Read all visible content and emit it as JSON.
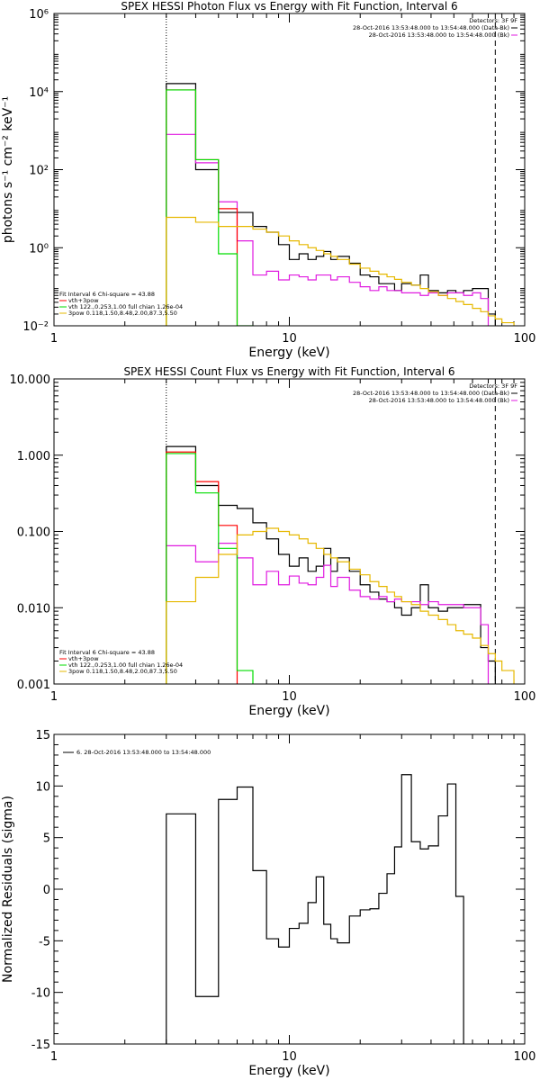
{
  "chart_data": [
    {
      "type": "line",
      "title": "SPEX HESSI Photon Flux vs Energy with Fit Function, Interval 6",
      "xlabel": "Energy (keV)",
      "ylabel": "photons s⁻¹ cm⁻² keV⁻¹",
      "xscale": "log",
      "yscale": "log",
      "xlim": [
        1,
        100
      ],
      "ylim": [
        0.01,
        1000000
      ],
      "xticks": [
        "1",
        "10",
        "100"
      ],
      "yticks": [
        "10⁻²",
        "10⁰",
        "10²",
        "10⁴",
        "10⁶"
      ],
      "grid": false,
      "fit_range": [
        3.0,
        75.0
      ],
      "edges": [
        3.0,
        4.0,
        5.0,
        6.0,
        7.0,
        8.0,
        9.0,
        10.0,
        11.0,
        12.0,
        13.0,
        14.0,
        15.0,
        16.0,
        18.0,
        20.0,
        22.0,
        24.0,
        26.0,
        28.0,
        30.0,
        33.0,
        36.0,
        39.0,
        43.0,
        47.0,
        51.0,
        55.0,
        60.0,
        65.0,
        70.0,
        75.0,
        80.0,
        90.0
      ],
      "legend_top": {
        "header": "Detectors: 3F 9F",
        "entries": [
          {
            "label": "28-Oct-2016 13:53:48.000 to 13:54:48.000 (Data-Bk)",
            "color": "#000000"
          },
          {
            "label": "28-Oct-2016 13:53:48.000 to 13:54:48.000 (Bk)",
            "color": "#e01be0"
          }
        ]
      },
      "legend_bottom": {
        "header": "Fit Interval 6   Chi-square = 43.88",
        "entries": [
          {
            "label": "vth+3pow",
            "color": "#ff0000"
          },
          {
            "label": "vth 122.,0.253,1.00  full chian 1.26e-04",
            "color": "#00dd00"
          },
          {
            "label": "3pow 0.118,1.50,8.48,2.00,87.3,5.50",
            "color": "#e6b800"
          }
        ]
      },
      "series": [
        {
          "name": "28-Oct-2016 13:53:48.000 to 13:54:48.000 (Data-Bk)",
          "color": "#000000",
          "values": [
            16000,
            100,
            8,
            8,
            3.5,
            2.5,
            1.2,
            0.5,
            0.7,
            0.5,
            0.6,
            0.8,
            0.5,
            0.6,
            0.4,
            0.2,
            0.18,
            0.12,
            0.12,
            0.08,
            0.12,
            0.11,
            0.2,
            0.08,
            0.07,
            0.08,
            0.07,
            0.08,
            0.09,
            0.09,
            0.02
          ]
        },
        {
          "name": "28-Oct-2016 13:53:48.000 to 13:54:48.000 (Bk)",
          "color": "#e01be0",
          "values": [
            800,
            150,
            15,
            1.5,
            0.2,
            0.25,
            0.15,
            0.2,
            0.18,
            0.15,
            0.2,
            0.2,
            0.15,
            0.18,
            0.13,
            0.1,
            0.08,
            0.1,
            0.08,
            0.08,
            0.07,
            0.07,
            0.06,
            0.07,
            0.06,
            0.07,
            0.07,
            0.06,
            0.07,
            0.05
          ]
        },
        {
          "name": "vth+3pow",
          "color": "#ff0000",
          "values": [
            11000,
            180,
            10
          ]
        },
        {
          "name": "vth 122.,0.253,1.00  full chian 1.26e-04",
          "color": "#00dd00",
          "values": [
            11000,
            180,
            0.7,
            0.003
          ]
        },
        {
          "name": "3pow 0.118,1.50,8.48,2.00,87.3,5.50",
          "color": "#e6b800",
          "values": [
            6,
            4.5,
            3.5,
            3.5,
            3,
            2.5,
            2,
            1.5,
            1.2,
            1,
            0.85,
            0.7,
            0.6,
            0.5,
            0.38,
            0.3,
            0.25,
            0.21,
            0.18,
            0.155,
            0.13,
            0.11,
            0.09,
            0.075,
            0.06,
            0.05,
            0.042,
            0.035,
            0.028,
            0.023,
            0.018,
            0.015,
            0.012
          ]
        }
      ]
    },
    {
      "type": "line",
      "title": "SPEX HESSI Count Flux vs Energy with Fit Function, Interval 6",
      "xlabel": "Energy (keV)",
      "ylabel": "",
      "xscale": "log",
      "yscale": "log",
      "xlim": [
        1,
        100
      ],
      "ylim": [
        0.001,
        10
      ],
      "xticks": [
        "1",
        "10",
        "100"
      ],
      "yticks": [
        "0.001",
        "0.010",
        "0.100",
        "1.000",
        "10.000"
      ],
      "grid": false,
      "fit_range": [
        3.0,
        75.0
      ],
      "edges": [
        3.0,
        4.0,
        5.0,
        6.0,
        7.0,
        8.0,
        9.0,
        10.0,
        11.0,
        12.0,
        13.0,
        14.0,
        15.0,
        16.0,
        18.0,
        20.0,
        22.0,
        24.0,
        26.0,
        28.0,
        30.0,
        33.0,
        36.0,
        39.0,
        43.0,
        47.0,
        51.0,
        55.0,
        60.0,
        65.0,
        70.0,
        75.0,
        80.0,
        90.0
      ],
      "legend_top": {
        "header": "Detectors: 3F 9F",
        "entries": [
          {
            "label": "28-Oct-2016 13:53:48.000 to 13:54:48.000 (Data-Bk)",
            "color": "#000000"
          },
          {
            "label": "28-Oct-2016 13:53:48.000 to 13:54:48.000 (Bk)",
            "color": "#e01be0"
          }
        ]
      },
      "legend_bottom": {
        "header": "Fit Interval 6   Chi-square = 43.88",
        "entries": [
          {
            "label": "vth+3pow",
            "color": "#ff0000"
          },
          {
            "label": "vth 122.,0.253,1.00  full chian 1.26e-04",
            "color": "#00dd00"
          },
          {
            "label": "3pow 0.118,1.50,8.48,2.00,87.3,5.50",
            "color": "#e6b800"
          }
        ]
      },
      "series": [
        {
          "name": "28-Oct-2016 13:53:48.000 to 13:54:48.000 (Data-Bk)",
          "color": "#000000",
          "values": [
            1.3,
            0.4,
            0.22,
            0.2,
            0.13,
            0.08,
            0.05,
            0.035,
            0.045,
            0.03,
            0.035,
            0.06,
            0.03,
            0.045,
            0.03,
            0.02,
            0.016,
            0.013,
            0.012,
            0.01,
            0.008,
            0.01,
            0.02,
            0.01,
            0.009,
            0.01,
            0.01,
            0.011,
            0.011,
            0.003,
            0.002
          ]
        },
        {
          "name": "28-Oct-2016 13:53:48.000 to 13:54:48.000 (Bk)",
          "color": "#e01be0",
          "values": [
            0.065,
            0.04,
            0.07,
            0.045,
            0.02,
            0.03,
            0.02,
            0.026,
            0.021,
            0.02,
            0.025,
            0.036,
            0.019,
            0.025,
            0.017,
            0.014,
            0.013,
            0.014,
            0.012,
            0.013,
            0.012,
            0.012,
            0.011,
            0.012,
            0.011,
            0.011,
            0.011,
            0.01,
            0.01,
            0.006
          ]
        },
        {
          "name": "vth+3pow",
          "color": "#ff0000",
          "values": [
            1.1,
            0.45,
            0.12
          ]
        },
        {
          "name": "vth 122.,0.253,1.00  full chian 1.26e-04",
          "color": "#00dd00",
          "values": [
            1.05,
            0.32,
            0.06,
            0.0015
          ]
        },
        {
          "name": "3pow 0.118,1.50,8.48,2.00,87.3,5.50",
          "color": "#e6b800",
          "values": [
            0.012,
            0.025,
            0.05,
            0.09,
            0.1,
            0.11,
            0.1,
            0.09,
            0.08,
            0.07,
            0.06,
            0.05,
            0.045,
            0.04,
            0.032,
            0.027,
            0.022,
            0.019,
            0.016,
            0.014,
            0.012,
            0.011,
            0.009,
            0.008,
            0.007,
            0.006,
            0.005,
            0.0045,
            0.004,
            0.0032,
            0.0025,
            0.002,
            0.0015
          ]
        }
      ]
    },
    {
      "type": "line",
      "title": "",
      "xlabel": "Energy (keV)",
      "ylabel": "Normalized Residuals (sigma)",
      "xscale": "log",
      "yscale": "linear",
      "xlim": [
        1,
        100
      ],
      "ylim": [
        -15,
        15
      ],
      "xticks": [
        "1",
        "10",
        "100"
      ],
      "yticks": [
        "-15",
        "-10",
        "-5",
        "0",
        "5",
        "10",
        "15"
      ],
      "grid": false,
      "legend_top": {
        "header": "",
        "entries": [
          {
            "label": "6. 28-Oct-2016 13:53:48.000 to 13:54:48.000",
            "color": "#000000"
          }
        ]
      },
      "edges": [
        3.0,
        4.0,
        5.0,
        6.0,
        7.0,
        8.0,
        9.0,
        10.0,
        11.0,
        12.0,
        13.0,
        14.0,
        15.0,
        16.0,
        18.0,
        20.0,
        22.0,
        24.0,
        26.0,
        28.0,
        30.0,
        33.0,
        36.0,
        39.0,
        43.0,
        47.0,
        51.0,
        55.0,
        60.0,
        65.0,
        70.0,
        75.0
      ],
      "series": [
        {
          "name": "",
          "color": "#000000",
          "values": [
            7.3,
            -10.4,
            8.7,
            9.9,
            1.8,
            -4.8,
            -5.6,
            -3.8,
            -3.3,
            -1.3,
            1.2,
            -3.4,
            -4.8,
            -5.2,
            -2.6,
            -2.0,
            -1.9,
            -0.4,
            1.5,
            4.1,
            11.1,
            4.6,
            3.9,
            4.2,
            7.1,
            10.2,
            -0.7
          ]
        }
      ]
    }
  ]
}
